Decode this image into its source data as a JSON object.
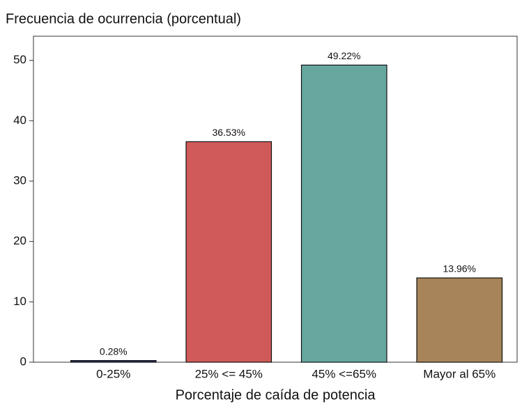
{
  "chart_data": {
    "type": "bar",
    "title": "Frecuencia de ocurrencia (porcentual)",
    "x_label": "Porcentaje de caída de potencia",
    "categories": [
      "0-25%",
      "25% <= 45%",
      "45% <=65%",
      "Mayor al 65%"
    ],
    "values": [
      0.28,
      36.53,
      49.22,
      13.96
    ],
    "value_labels": [
      "0.28%",
      "36.53%",
      "49.22%",
      "13.96%"
    ],
    "colors": [
      "#2b2f6b",
      "#d05a5a",
      "#66a8a0",
      "#a8845a"
    ],
    "ylim": [
      0,
      54
    ],
    "yticks": [
      0,
      10,
      20,
      30,
      40,
      50
    ]
  }
}
